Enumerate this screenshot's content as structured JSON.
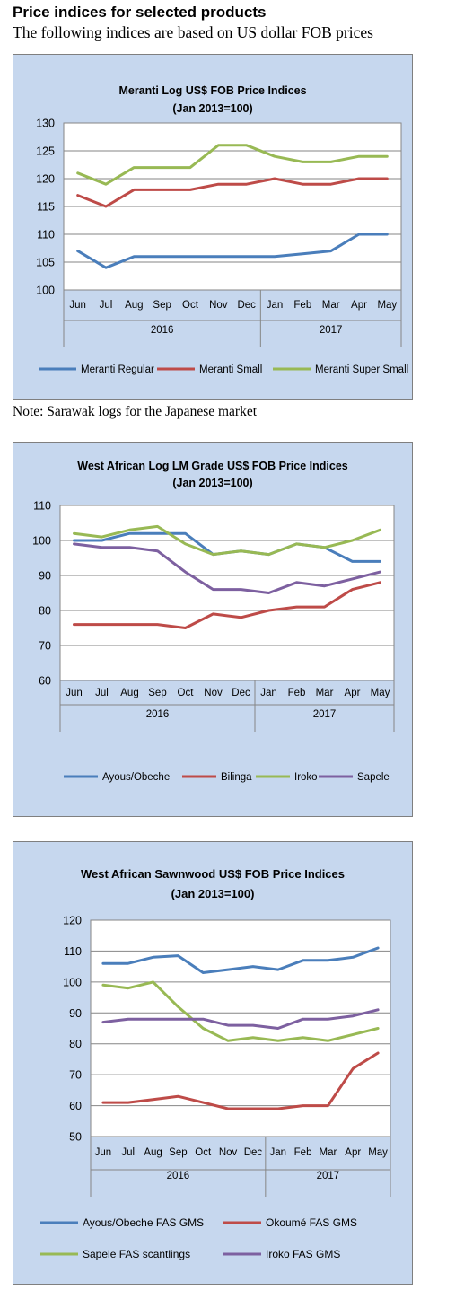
{
  "page": {
    "heading": "Price indices for selected products",
    "subheading": "The following indices are based on US dollar FOB prices",
    "note": "Note: Sarawak logs for the Japanese market"
  },
  "chart_data": [
    {
      "type": "line",
      "title": "Meranti Log US$ FOB Price Indices",
      "subtitle": "(Jan 2013=100)",
      "categories": [
        "Jun",
        "Jul",
        "Aug",
        "Sep",
        "Oct",
        "Nov",
        "Dec",
        "Jan",
        "Feb",
        "Mar",
        "Apr",
        "May"
      ],
      "year_groups": [
        {
          "label": "2016",
          "span": 7
        },
        {
          "label": "2017",
          "span": 5
        }
      ],
      "ylim": [
        100,
        130
      ],
      "yticks": [
        100,
        105,
        110,
        115,
        120,
        125,
        130
      ],
      "grid": true,
      "legend_position": "bottom",
      "series": [
        {
          "name": "Meranti Regular",
          "color": "#4a7ebb",
          "values": [
            107,
            104,
            106,
            106,
            106,
            106,
            106,
            106,
            106.5,
            107,
            110,
            110
          ]
        },
        {
          "name": "Meranti Small",
          "color": "#be4b48",
          "values": [
            117,
            115,
            118,
            118,
            118,
            119,
            119,
            120,
            119,
            119,
            120,
            120
          ]
        },
        {
          "name": "Meranti Super Small",
          "color": "#98b954",
          "values": [
            121,
            119,
            122,
            122,
            122,
            126,
            126,
            124,
            123,
            123,
            124,
            124
          ]
        }
      ]
    },
    {
      "type": "line",
      "title": "West African Log LM Grade US$ FOB Price Indices",
      "subtitle": "(Jan 2013=100)",
      "categories": [
        "Jun",
        "Jul",
        "Aug",
        "Sep",
        "Oct",
        "Nov",
        "Dec",
        "Jan",
        "Feb",
        "Mar",
        "Apr",
        "May"
      ],
      "year_groups": [
        {
          "label": "2016",
          "span": 7
        },
        {
          "label": "2017",
          "span": 5
        }
      ],
      "ylim": [
        60,
        110
      ],
      "yticks": [
        60,
        70,
        80,
        90,
        100,
        110
      ],
      "grid": true,
      "legend_position": "bottom",
      "series": [
        {
          "name": "Ayous/Obeche",
          "color": "#4a7ebb",
          "values": [
            100,
            100,
            102,
            102,
            102,
            96,
            97,
            96,
            99,
            98,
            94,
            94
          ]
        },
        {
          "name": "Bilinga",
          "color": "#be4b48",
          "values": [
            76,
            76,
            76,
            76,
            75,
            79,
            78,
            80,
            81,
            81,
            86,
            88
          ]
        },
        {
          "name": "Iroko",
          "color": "#98b954",
          "values": [
            102,
            101,
            103,
            104,
            99,
            96,
            97,
            96,
            99,
            98,
            100,
            103
          ]
        },
        {
          "name": "Sapele",
          "color": "#7d60a0",
          "values": [
            99,
            98,
            98,
            97,
            91,
            86,
            86,
            85,
            88,
            87,
            89,
            91
          ]
        }
      ]
    },
    {
      "type": "line",
      "title": "West African Sawnwood US$ FOB Price Indices",
      "subtitle": "(Jan 2013=100)",
      "categories": [
        "Jun",
        "Jul",
        "Aug",
        "Sep",
        "Oct",
        "Nov",
        "Dec",
        "Jan",
        "Feb",
        "Mar",
        "Apr",
        "May"
      ],
      "year_groups": [
        {
          "label": "2016",
          "span": 7
        },
        {
          "label": "2017",
          "span": 5
        }
      ],
      "ylim": [
        50,
        120
      ],
      "yticks": [
        50,
        60,
        70,
        80,
        90,
        100,
        110,
        120
      ],
      "grid": true,
      "legend_position": "bottom",
      "series": [
        {
          "name": "Ayous/Obeche FAS GMS",
          "color": "#4a7ebb",
          "values": [
            106,
            106,
            108,
            108.5,
            103,
            104,
            105,
            104,
            107,
            107,
            108,
            111
          ]
        },
        {
          "name": "Okoumé FAS GMS",
          "color": "#be4b48",
          "values": [
            61,
            61,
            62,
            63,
            61,
            59,
            59,
            59,
            60,
            60,
            72,
            77
          ]
        },
        {
          "name": "Sapele FAS scantlings",
          "color": "#98b954",
          "values": [
            99,
            98,
            100,
            92,
            85,
            81,
            82,
            81,
            82,
            81,
            83,
            85
          ]
        },
        {
          "name": "Iroko FAS GMS",
          "color": "#7d60a0",
          "values": [
            87,
            88,
            88,
            88,
            88,
            86,
            86,
            85,
            88,
            88,
            89,
            91
          ]
        }
      ]
    }
  ]
}
